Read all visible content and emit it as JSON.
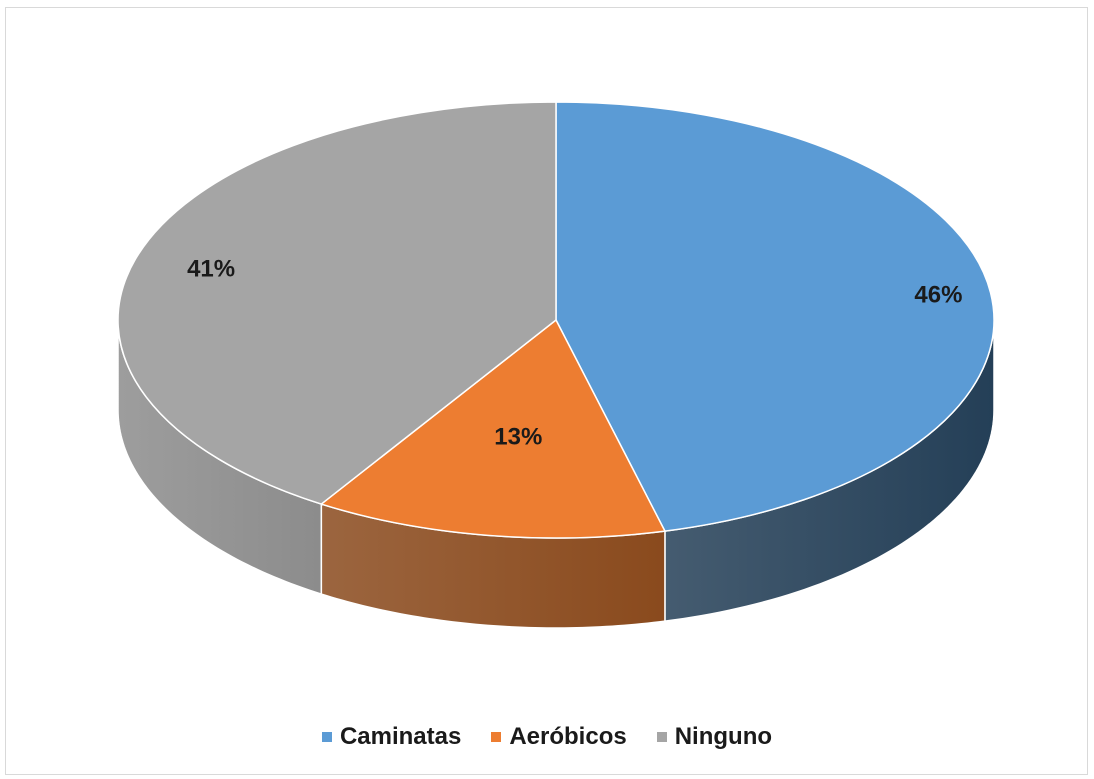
{
  "chart_data": {
    "type": "pie",
    "categories": [
      "Caminatas",
      "Aeróbicos",
      "Ninguno"
    ],
    "values": [
      46,
      13,
      41
    ],
    "data_labels": [
      "46%",
      "13%",
      "41%"
    ],
    "colors": [
      "#5b9bd5",
      "#ed7d31",
      "#a5a5a5"
    ],
    "side_colors": [
      "#243f57",
      "#8a4a1d",
      "#8c8c8c"
    ],
    "style": "3d",
    "legend_position": "bottom"
  }
}
